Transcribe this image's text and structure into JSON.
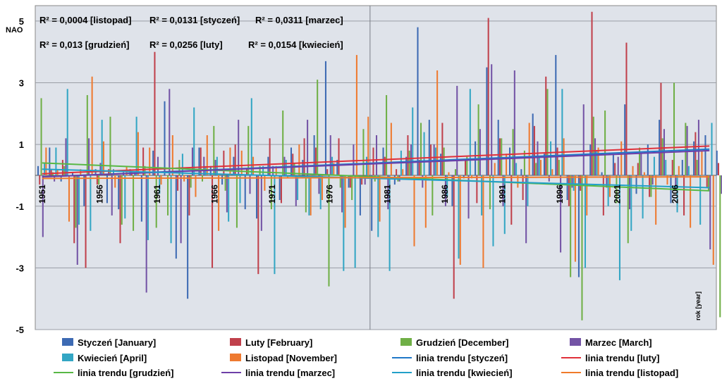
{
  "chart_data": {
    "type": "bar",
    "ylabel": "NAO",
    "xlabel": "rok [year]",
    "ylim": [
      -5,
      5.5
    ],
    "xlim": [
      1950.4,
      2009.6
    ],
    "yticks": [
      -5,
      -3,
      -1,
      1,
      3,
      5
    ],
    "ytick_labels": [
      "-5",
      "-3",
      "-1",
      "1",
      "3",
      "5"
    ],
    "xticks": [
      1951,
      1956,
      1961,
      1966,
      1971,
      1976,
      1981,
      1986,
      1991,
      1996,
      2001,
      2006
    ],
    "xtick_labels": [
      "1951",
      "1956",
      "1961",
      "1966",
      "1971",
      "1976",
      "1981",
      "1986",
      "1991",
      "1996",
      "2001",
      "2006"
    ],
    "divider_year": 1979.5,
    "grid": true,
    "legend_position": "bottom",
    "annotations": [
      "R² = 0,0004 [listopad]",
      "R² = 0,0131 [styczeń]",
      "R² = 0,0311 [marzec]",
      "R² = 0,013 [grudzień]",
      "R² = 0,0256 [luty]",
      "R² = 0,0154 [kwiecień]"
    ],
    "series": [
      {
        "name": "Styczeń [January]",
        "color": "#3d6ab3",
        "values": [
          0.3,
          0.9,
          -0.2,
          0.1,
          -1.0,
          0.2,
          -0.9,
          -1.1,
          0.2,
          -1.5,
          0.8,
          2.4,
          -2.7,
          -4.0,
          0.9,
          0.3,
          -0.3,
          0.6,
          -1.1,
          -1.4,
          0.6,
          -0.8,
          0.9,
          0.5,
          1.3,
          3.7,
          0.5,
          -0.4,
          -1.3,
          -1.8,
          0.9,
          -0.3,
          0.6,
          4.8,
          1.8,
          0.7,
          -1.0,
          -0.1,
          1.1,
          3.5,
          1.8,
          0.9,
          0.2,
          2.0,
          0.7,
          3.9,
          -0.8,
          -3.3,
          1.0,
          0.1,
          0.7,
          2.3,
          -0.6,
          1.0,
          1.8,
          -0.9,
          0.5,
          1.1,
          1.3,
          0.8
        ]
      },
      {
        "name": "Luty [February]",
        "color": "#c0404b",
        "values": [
          -0.3,
          0.2,
          0.5,
          -2.2,
          -3.0,
          -0.3,
          0.2,
          -2.2,
          0.1,
          0.9,
          4.0,
          0.0,
          -0.5,
          -1.3,
          0.9,
          -3.0,
          0.8,
          1.0,
          0.2,
          -3.2,
          1.2,
          -0.9,
          0.7,
          1.2,
          0.9,
          0.2,
          1.2,
          -0.4,
          -0.3,
          0.9,
          0.6,
          0.2,
          1.3,
          0.5,
          1.0,
          1.7,
          -4.0,
          0.5,
          -0.9,
          5.1,
          1.2,
          -1.6,
          -0.8,
          1.6,
          3.2,
          0.9,
          -1.0,
          -0.5,
          5.3,
          -1.3,
          0.4,
          4.3,
          0.4,
          -0.7,
          3.0,
          0.5,
          -1.3,
          1.4,
          -0.4,
          0.4
        ]
      },
      {
        "name": "Grudzień [December]",
        "color": "#6faf46",
        "values": [
          2.5,
          0.1,
          0.3,
          -1.7,
          2.6,
          -0.3,
          1.9,
          -1.6,
          -1.8,
          0.3,
          -1.7,
          -1.3,
          0.5,
          -0.4,
          -0.2,
          1.6,
          -0.5,
          -1.7,
          1.6,
          0.3,
          -1.1,
          2.1,
          0.4,
          -1.2,
          3.1,
          -3.6,
          -0.4,
          -0.8,
          1.5,
          -0.2,
          2.6,
          -0.2,
          0.8,
          1.7,
          -1.3,
          0.9,
          0.2,
          0.6,
          2.3,
          -1.1,
          1.2,
          1.5,
          0.8,
          0.4,
          2.8,
          0.5,
          -3.3,
          -4.7,
          1.9,
          2.1,
          -0.9,
          -2.2,
          0.9,
          -0.7,
          1.2,
          3.0,
          1.7,
          0.5,
          -0.5,
          -4.6
        ]
      },
      {
        "name": "Marzec [March]",
        "color": "#7353a5",
        "values": [
          -2.0,
          -0.2,
          1.2,
          -2.9,
          1.2,
          0.4,
          -1.3,
          0.1,
          0.1,
          -3.8,
          0.6,
          2.8,
          -2.2,
          0.9,
          0.6,
          0.5,
          -1.2,
          1.8,
          -0.6,
          -1.8,
          0.3,
          0.6,
          -1.0,
          1.8,
          -0.6,
          1.3,
          -1.2,
          1.0,
          -0.3,
          1.3,
          -1.1,
          -0.2,
          1.0,
          -0.4,
          1.0,
          -1.0,
          2.9,
          -1.4,
          1.5,
          3.6,
          -1.0,
          3.4,
          -2.2,
          1.1,
          -0.2,
          -2.5,
          -0.4,
          2.3,
          1.2,
          -0.4,
          0.6,
          -1.1,
          0.7,
          -0.3,
          1.5,
          -0.4,
          1.6,
          1.8,
          -2.4,
          -0.6
        ]
      },
      {
        "name": "Kwiecień [April]",
        "color": "#33a6c4",
        "values": [
          0.4,
          0.9,
          2.8,
          -1.6,
          -1.8,
          1.8,
          0.2,
          -1.4,
          1.9,
          -2.1,
          -0.6,
          -2.2,
          0.7,
          2.2,
          0.3,
          0.6,
          -1.5,
          -0.9,
          2.5,
          0.3,
          -3.2,
          0.5,
          -0.8,
          -1.3,
          -1.1,
          0.6,
          -3.1,
          -3.0,
          0.6,
          -2.0,
          -3.1,
          0.8,
          2.2,
          1.4,
          0.9,
          -0.7,
          -2.7,
          2.8,
          -1.3,
          -2.3,
          -1.9,
          0.4,
          -1.0,
          0.6,
          1.1,
          2.8,
          -0.5,
          -3.0,
          0.8,
          -1.0,
          -3.4,
          -1.8,
          -1.4,
          0.6,
          0.5,
          -1.2,
          0.3,
          -1.6,
          1.7,
          -3.3
        ]
      },
      {
        "name": "Listopad [November]",
        "color": "#ee7a30",
        "values": [
          0.9,
          0.2,
          -1.5,
          0.2,
          3.2,
          1.1,
          -0.4,
          0.3,
          1.4,
          0.9,
          -0.3,
          1.3,
          -0.2,
          -0.7,
          1.3,
          -1.8,
          0.9,
          0.8,
          0.6,
          -0.5,
          0.3,
          -0.1,
          1.0,
          -1.3,
          -0.8,
          0.4,
          -1.7,
          3.9,
          1.9,
          -1.5,
          1.7,
          0.2,
          -2.3,
          -1.7,
          3.4,
          0.1,
          -2.9,
          -0.1,
          -3.0,
          0.4,
          0.7,
          -0.4,
          1.7,
          0.5,
          0.2,
          1.2,
          -2.8,
          -1.3,
          0.9,
          -0.7,
          1.1,
          0.3,
          0.1,
          -1.6,
          -0.3,
          0.3,
          -1.7,
          0.8,
          -2.9,
          -3.4
        ]
      }
    ],
    "trend_lines": [
      {
        "name": "linia trendu [styczeń]",
        "color": "#1f78c8",
        "y_start": -0.05,
        "y_end": 0.85
      },
      {
        "name": "linia trendu [luty]",
        "color": "#e0303a",
        "y_start": 0.05,
        "y_end": 0.95
      },
      {
        "name": "linia trendu [grudzień]",
        "color": "#58b845",
        "y_start": 0.4,
        "y_end": -0.5
      },
      {
        "name": "linia trendu [marzec]",
        "color": "#6d3fa8",
        "y_start": -0.05,
        "y_end": 0.8
      },
      {
        "name": "linia trendu [kwiecień]",
        "color": "#22a0c8",
        "y_start": 0.2,
        "y_end": -0.4
      },
      {
        "name": "linia trendu [listopad]",
        "color": "#f07a2a",
        "y_start": -0.1,
        "y_end": -0.05
      }
    ]
  }
}
